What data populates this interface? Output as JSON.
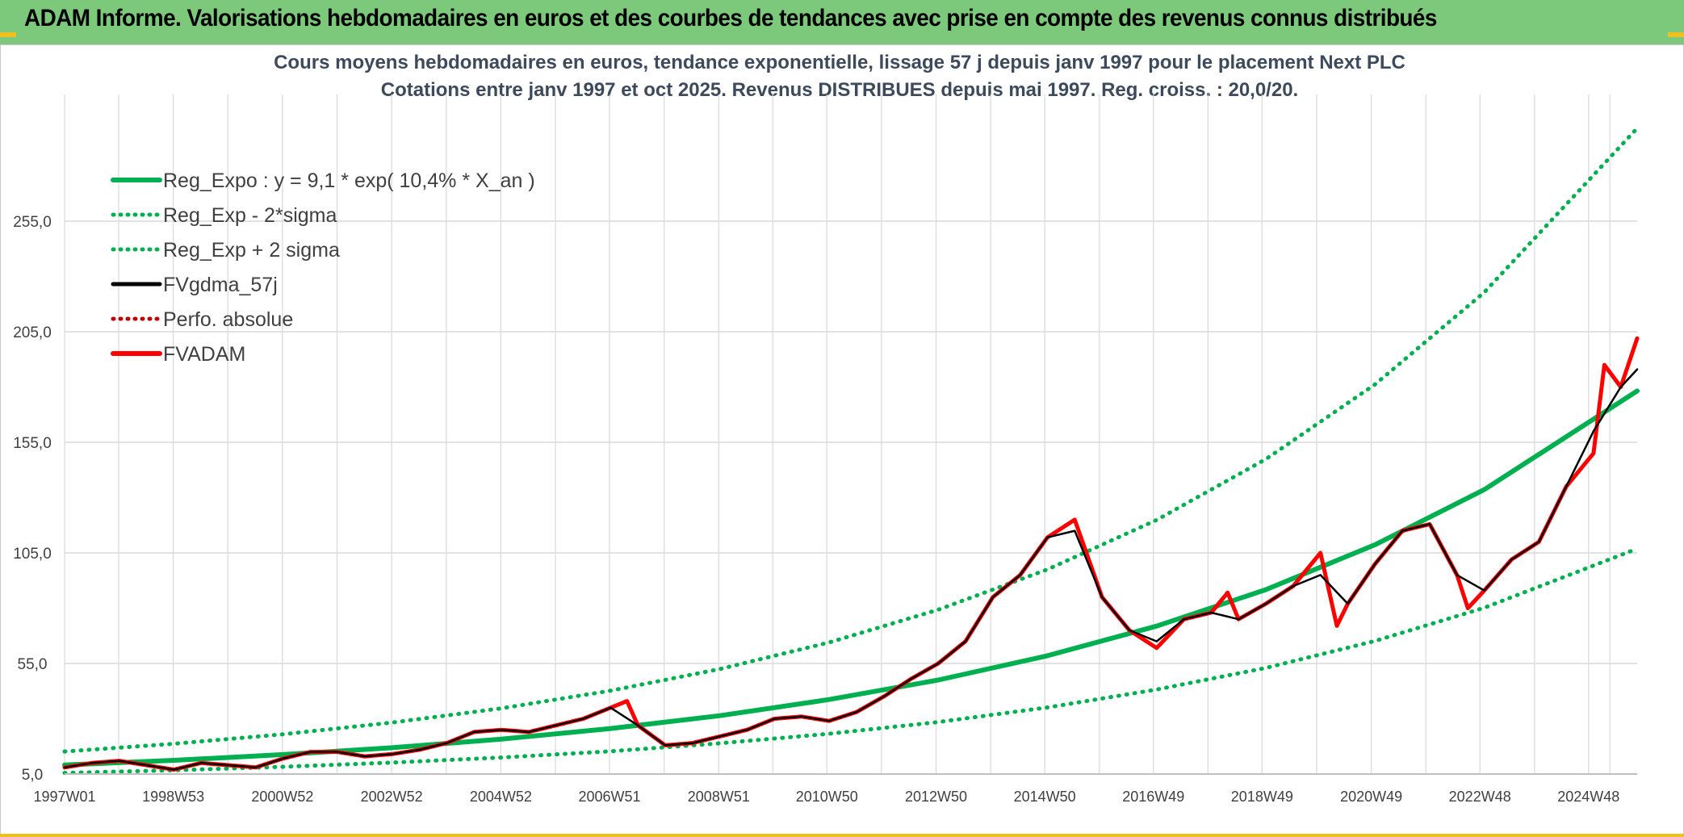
{
  "header": {
    "title": "ADAM Informe. Valorisations hebdomadaires en euros et des courbes de tendances avec prise en compte des revenus connus distribués"
  },
  "colors": {
    "banner": "#7dc97b",
    "reg_expo": "#00b050",
    "fvadam": "#ff0000",
    "fvgdma": "#000000",
    "grid": "#d9d9d9"
  },
  "chart_data": {
    "type": "line",
    "title": "Cours moyens hebdomadaires en euros, tendance exponentielle, lissage 57 j depuis janv 1997 pour le placement Next PLC",
    "subtitle": "Cotations entre janv 1997 et oct 2025. Revenus DISTRIBUES depuis mai 1997. Reg. croiss. : 20,0/20.",
    "xlabel": "",
    "ylabel": "",
    "x_range": [
      "1997W01",
      "2025W42"
    ],
    "ylim": [
      5,
      305
    ],
    "y_ticks": [
      "5,0",
      "55,0",
      "105,0",
      "155,0",
      "205,0",
      "255,0"
    ],
    "x_ticks": [
      "1997W01",
      "1998W53",
      "2000W52",
      "2002W52",
      "2004W52",
      "2006W51",
      "2008W51",
      "2010W50",
      "2012W50",
      "2014W50",
      "2016W49",
      "2018W49",
      "2020W49",
      "2022W48",
      "2024W48"
    ],
    "grid": true,
    "legend_position": "top-left",
    "series": [
      {
        "name": "Reg_Expo : y = 9,1 * exp( 10,4% *  X_an )",
        "style": "solid-thick",
        "color": "#00b050",
        "x": [
          1997.0,
          1999.0,
          2001.0,
          2003.0,
          2005.0,
          2007.0,
          2009.0,
          2011.0,
          2013.0,
          2015.0,
          2017.0,
          2019.0,
          2021.0,
          2023.0,
          2025.8
        ],
        "values": [
          9.1,
          11.2,
          13.8,
          16.9,
          20.8,
          25.6,
          31.4,
          38.7,
          47.5,
          58.5,
          71.9,
          88.4,
          108.7,
          133.6,
          178.2
        ]
      },
      {
        "name": "Reg_Exp - 2*sigma",
        "style": "dotted",
        "color": "#00b050",
        "x": [
          1997.0,
          1999.0,
          2001.0,
          2003.0,
          2005.0,
          2007.0,
          2009.0,
          2011.0,
          2013.0,
          2015.0,
          2017.0,
          2019.0,
          2021.0,
          2023.0,
          2025.8
        ],
        "values": [
          5.5,
          6.7,
          8.3,
          10.2,
          12.5,
          15.3,
          18.9,
          23.2,
          28.5,
          35.1,
          43.2,
          53.0,
          65.2,
          80.2,
          106.9
        ]
      },
      {
        "name": "Reg_Exp + 2 sigma",
        "style": "dotted",
        "color": "#00b050",
        "x": [
          1997.0,
          1999.0,
          2001.0,
          2003.0,
          2005.0,
          2007.0,
          2009.0,
          2011.0,
          2013.0,
          2015.0,
          2017.0,
          2019.0,
          2021.0,
          2023.0,
          2025.8
        ],
        "values": [
          15.2,
          18.7,
          23.0,
          28.3,
          34.7,
          42.7,
          52.5,
          64.5,
          79.3,
          97.5,
          119.9,
          147.4,
          181.2,
          222.8,
          297.0
        ]
      },
      {
        "name": "FVgdma_57j",
        "style": "solid-thin",
        "color": "#000000",
        "x": [
          1997.0,
          1997.5,
          1998.0,
          1998.5,
          1999.0,
          1999.5,
          2000.0,
          2000.5,
          2001.0,
          2001.5,
          2002.0,
          2002.5,
          2003.0,
          2003.5,
          2004.0,
          2004.5,
          2005.0,
          2005.5,
          2006.0,
          2006.5,
          2007.0,
          2007.5,
          2008.0,
          2008.5,
          2009.0,
          2009.5,
          2010.0,
          2010.5,
          2011.0,
          2011.5,
          2012.0,
          2012.5,
          2013.0,
          2013.5,
          2014.0,
          2014.5,
          2015.0,
          2015.5,
          2016.0,
          2016.5,
          2017.0,
          2017.5,
          2018.0,
          2018.5,
          2019.0,
          2019.5,
          2020.0,
          2020.5,
          2021.0,
          2021.5,
          2022.0,
          2022.5,
          2023.0,
          2023.5,
          2024.0,
          2024.5,
          2025.0,
          2025.5,
          2025.8
        ],
        "values": [
          8,
          10,
          11,
          9,
          7,
          10,
          9,
          8,
          12,
          15,
          15,
          13,
          14,
          16,
          19,
          24,
          25,
          24,
          27,
          30,
          35,
          27,
          18,
          19,
          22,
          25,
          30,
          31,
          29,
          33,
          40,
          48,
          55,
          65,
          85,
          95,
          112,
          115,
          85,
          70,
          65,
          75,
          78,
          75,
          82,
          90,
          95,
          82,
          100,
          115,
          118,
          95,
          88,
          102,
          110,
          135,
          160,
          180,
          188
        ]
      },
      {
        "name": "Perfo. absolue",
        "style": "dotted",
        "color": "#c00000",
        "x": [],
        "values": []
      },
      {
        "name": "FVADAM",
        "style": "solid-thick",
        "color": "#ff0000",
        "x": [
          1997.0,
          1997.5,
          1998.0,
          1998.5,
          1999.0,
          1999.5,
          2000.0,
          2000.5,
          2001.0,
          2001.5,
          2002.0,
          2002.5,
          2003.0,
          2003.5,
          2004.0,
          2004.5,
          2005.0,
          2005.5,
          2006.0,
          2006.5,
          2007.0,
          2007.3,
          2007.5,
          2008.0,
          2008.5,
          2009.0,
          2009.5,
          2010.0,
          2010.5,
          2011.0,
          2011.5,
          2012.0,
          2012.5,
          2013.0,
          2013.5,
          2014.0,
          2014.5,
          2015.0,
          2015.5,
          2016.0,
          2016.5,
          2017.0,
          2017.5,
          2018.0,
          2018.3,
          2018.5,
          2019.0,
          2019.5,
          2020.0,
          2020.3,
          2020.5,
          2021.0,
          2021.5,
          2022.0,
          2022.5,
          2022.7,
          2023.0,
          2023.5,
          2024.0,
          2024.5,
          2025.0,
          2025.2,
          2025.5,
          2025.8
        ],
        "values": [
          8,
          10,
          11,
          9,
          7,
          10,
          9,
          8,
          12,
          15,
          15,
          13,
          14,
          16,
          19,
          24,
          25,
          24,
          27,
          30,
          35,
          38,
          27,
          18,
          19,
          22,
          25,
          30,
          31,
          29,
          33,
          40,
          48,
          55,
          65,
          85,
          95,
          112,
          120,
          85,
          70,
          62,
          75,
          78,
          87,
          75,
          82,
          90,
          105,
          72,
          82,
          100,
          115,
          118,
          95,
          80,
          88,
          102,
          110,
          135,
          150,
          190,
          180,
          202
        ]
      }
    ]
  }
}
